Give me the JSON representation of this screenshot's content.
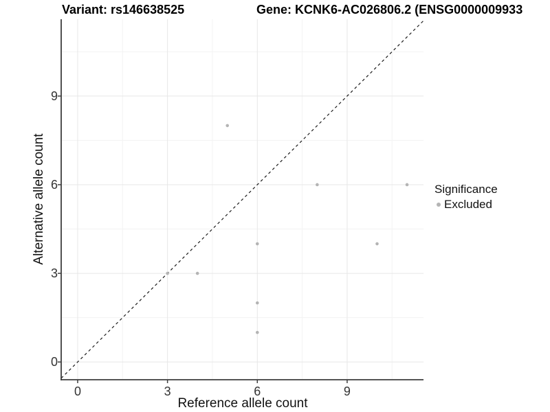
{
  "title": {
    "variant": "Variant: rs146638525",
    "gene": "Gene: KCNK6-AC026806.2 (ENSG0000009933"
  },
  "chart_data": {
    "type": "scatter",
    "title": "Variant: rs146638525  Gene: KCNK6-AC026806.2 (ENSG0000009933",
    "xlabel": "Reference allele count",
    "ylabel": "Alternative allele count",
    "series": [
      {
        "name": "Excluded",
        "color": "#b4b4b4",
        "points": [
          [
            3,
            3
          ],
          [
            4,
            3
          ],
          [
            5,
            8
          ],
          [
            6,
            1
          ],
          [
            6,
            2
          ],
          [
            6,
            4
          ],
          [
            8,
            6
          ],
          [
            10,
            4
          ],
          [
            11,
            6
          ]
        ]
      }
    ],
    "reference_line": {
      "kind": "identity y=x",
      "style": "dashed",
      "color": "#1a1a1a"
    },
    "x_ticks": [
      0,
      3,
      6,
      9
    ],
    "y_ticks": [
      0,
      3,
      6,
      9
    ],
    "x_minor_ticks": [
      1.5,
      4.5,
      7.5,
      10.5
    ],
    "y_minor_ticks": [
      1.5,
      4.5,
      7.5,
      10.5
    ],
    "xlim": [
      -0.55,
      11.55
    ],
    "ylim": [
      -0.6,
      11.6
    ],
    "grid": "major+minor",
    "legend": {
      "title": "Significance",
      "position": "right",
      "items": [
        {
          "label": "Excluded",
          "color": "#b4b4b4"
        }
      ]
    }
  },
  "colors": {
    "point": "#b4b4b4",
    "axis_line": "#3d3d3d",
    "major_grid": "#e7e7e7",
    "minor_grid": "#f3f3f3",
    "dashed_line": "#1a1a1a",
    "tick_text": "#333333"
  }
}
